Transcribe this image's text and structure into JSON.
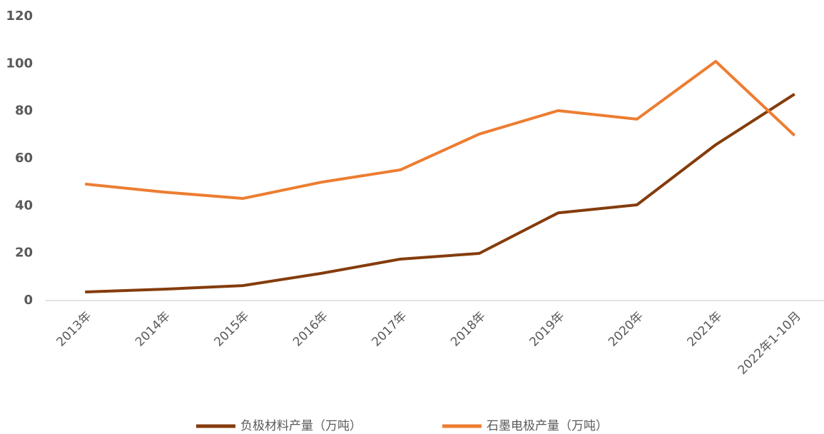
{
  "chart_data": {
    "type": "line",
    "categories": [
      "2013年",
      "2014年",
      "2015年",
      "2016年",
      "2017年",
      "2018年",
      "2019年",
      "2020年",
      "2021年",
      "2022年1-10月"
    ],
    "series": [
      {
        "name": "负极材料产量（万吨）",
        "color": "#843c0c",
        "values": [
          3.6,
          4.8,
          6.3,
          11.5,
          17.5,
          19.9,
          37,
          40.4,
          65.8,
          87.2
        ]
      },
      {
        "name": "石墨电极产量（万吨）",
        "color": "#ed7d31",
        "values": [
          49.2,
          45.8,
          43.1,
          50,
          55.2,
          70.3,
          80.2,
          76.6,
          101,
          69.7
        ]
      }
    ],
    "ylim": [
      0,
      120
    ],
    "yticks": [
      0,
      20,
      40,
      60,
      80,
      100,
      120
    ],
    "grid": false,
    "legend": "bottom"
  }
}
